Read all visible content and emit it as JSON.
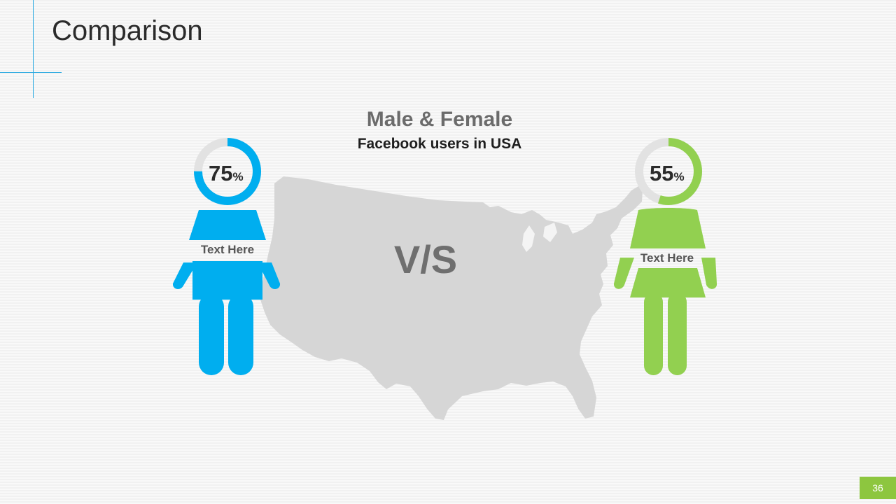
{
  "title": "Comparison",
  "heading": {
    "main": "Male & Female",
    "sub": "Facebook users in USA"
  },
  "vs_text": "V/S",
  "male": {
    "percent": 75,
    "percent_value": "75",
    "percent_sign": "%",
    "label": "Text Here",
    "color": "#00aeef"
  },
  "female": {
    "percent": 55,
    "percent_value": "55",
    "percent_sign": "%",
    "label": "Text Here",
    "color": "#92d050"
  },
  "map_color": "#d6d6d6",
  "ring_track_color": "#e2e2e2",
  "accent_color": "#29a9e1",
  "page_number": "36",
  "page_badge_color": "#8dc63f"
}
